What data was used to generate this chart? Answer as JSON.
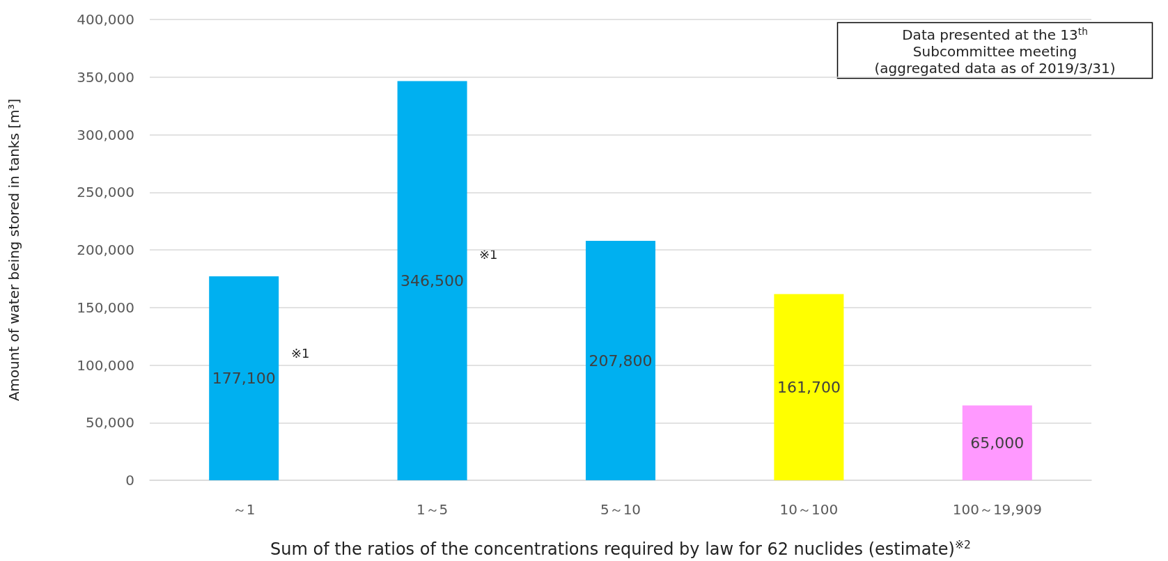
{
  "chart_data": {
    "type": "bar",
    "categories": [
      "～1",
      "1～5",
      "5～10",
      "10～100",
      "100～19,909"
    ],
    "values": [
      177100,
      346500,
      207800,
      161700,
      65000
    ],
    "colors": [
      "#00b0f0",
      "#00b0f0",
      "#00b0f0",
      "#ffff00",
      "#ff99ff"
    ],
    "value_labels": [
      "177,100",
      "346,500",
      "207,800",
      "161,700",
      "65,000"
    ],
    "ylabel": "Amount of water being stored in tanks [m³]",
    "xlabel": "Sum of the ratios of the concentrations required by law for 62 nuclides (estimate)$^{※2}$",
    "ylim": [
      0,
      400000
    ],
    "yticks": [
      0,
      {
        "value": 50000,
        "label": "50,000"
      },
      {
        "value": 100000,
        "label": "100,000"
      },
      {
        "value": 150000,
        "label": "150,000"
      },
      {
        "value": 200000,
        "label": "200,000"
      },
      {
        "value": 250000,
        "label": "250,000"
      },
      {
        "value": 300000,
        "label": "300,000"
      },
      {
        "value": 350000,
        "label": "350,000"
      },
      {
        "value": 400000,
        "label": "400,000"
      }
    ],
    "grid": "y",
    "annotations": [
      "Data presented at the 13$^{th}$\nSubcommittee meeting\n(aggregated data as of 2019/3/31)",
      "※1",
      "※1"
    ]
  }
}
